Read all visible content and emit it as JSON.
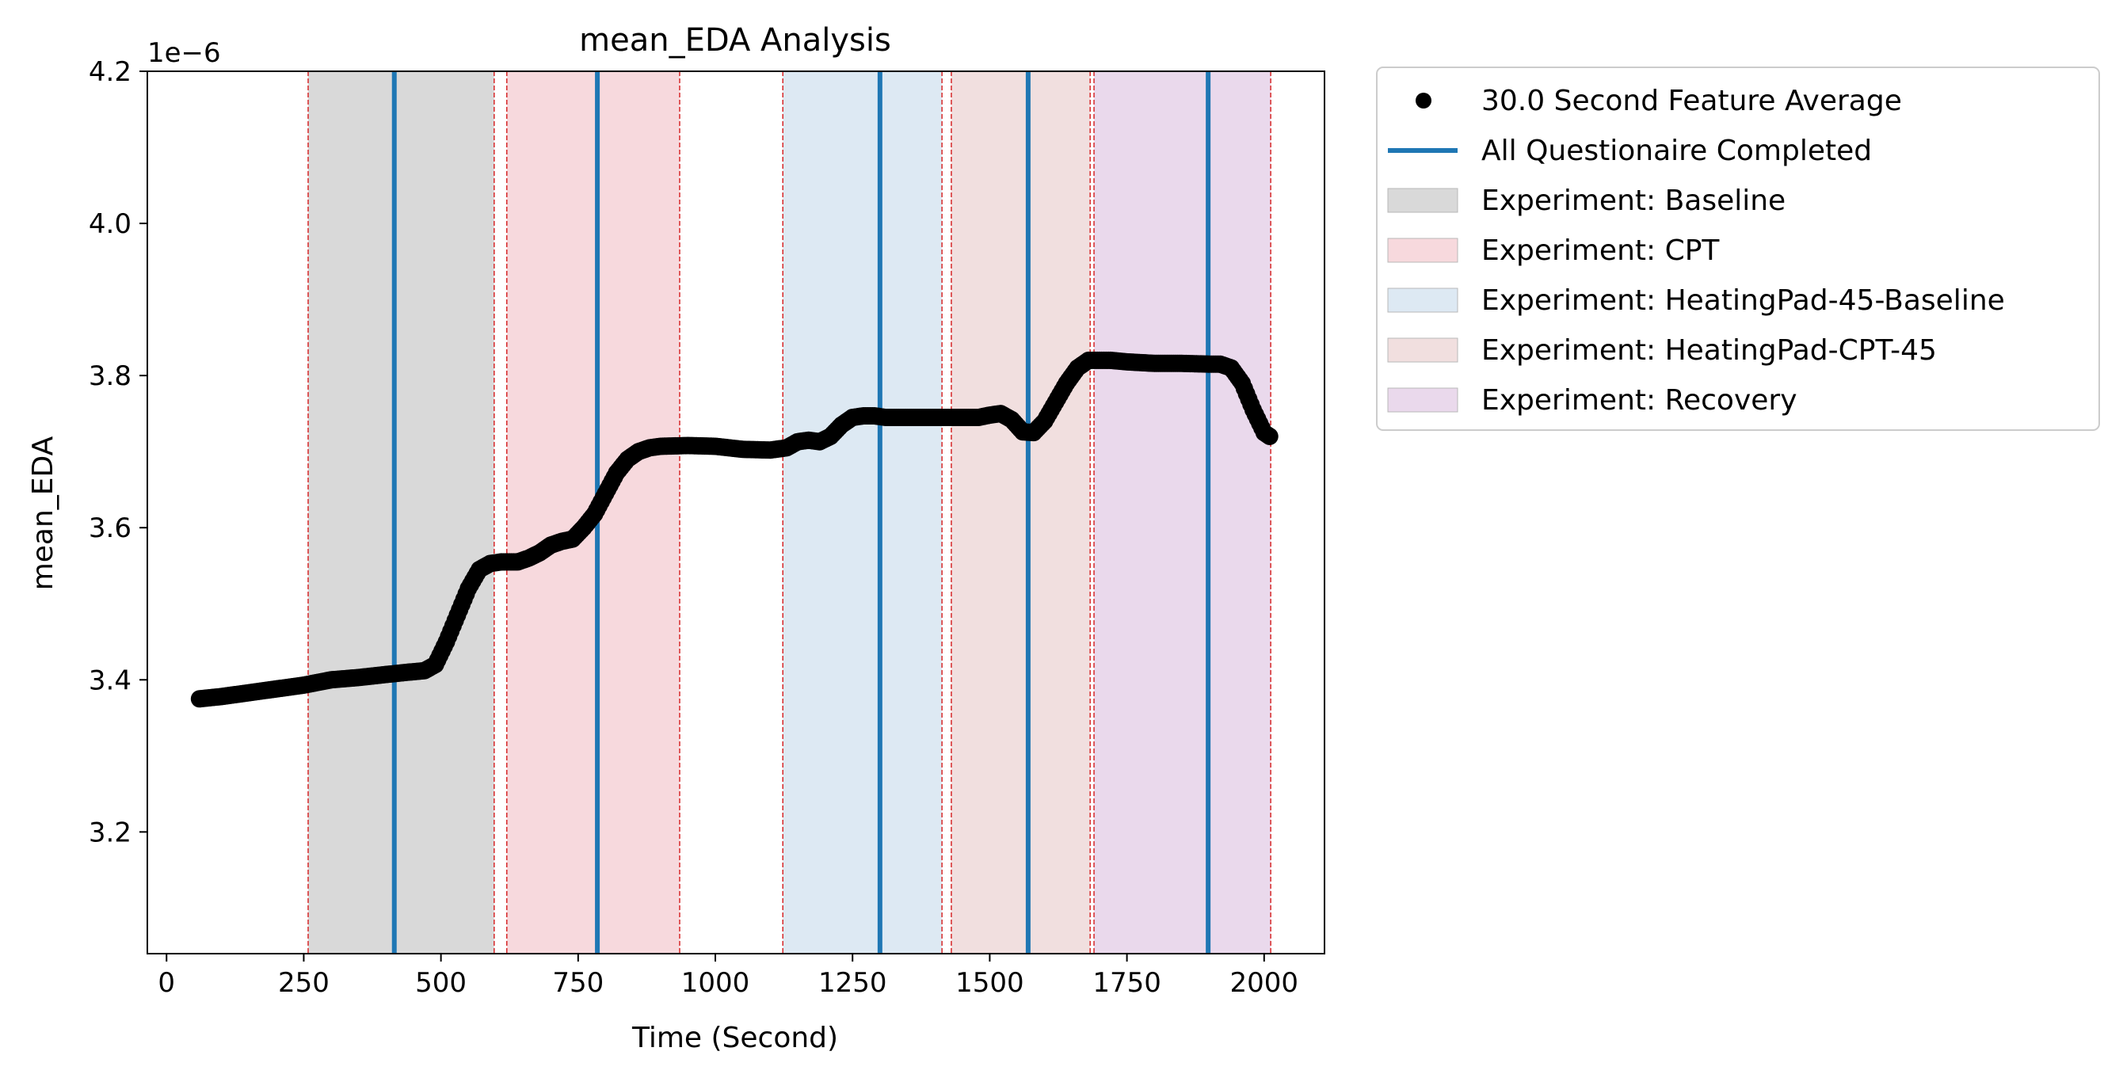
{
  "chart_data": {
    "type": "line",
    "title": "mean_EDA Analysis",
    "xlabel": "Time (Second)",
    "ylabel": "mean_EDA",
    "y_offset_label": "1e−6",
    "xlim": [
      -35,
      2110
    ],
    "ylim": [
      3.04,
      4.2
    ],
    "x_ticks": [
      0,
      250,
      500,
      750,
      1000,
      1250,
      1500,
      1750,
      2000
    ],
    "y_ticks": [
      3.2,
      3.4,
      3.6,
      3.8,
      4.0,
      4.2
    ],
    "y_tick_labels": [
      "3.2",
      "3.4",
      "3.6",
      "3.8",
      "4.0",
      "4.2"
    ],
    "grid": false,
    "legend_position": "outside-right-top",
    "colors": {
      "series": "#000000",
      "questionnaire": "#1f77b4",
      "boundary": "#d62728"
    },
    "series": [
      {
        "name": "30.0 Second Feature Average",
        "x": [
          60,
          100,
          150,
          200,
          250,
          300,
          350,
          400,
          440,
          470,
          490,
          510,
          530,
          550,
          570,
          590,
          610,
          640,
          660,
          680,
          700,
          720,
          740,
          760,
          780,
          800,
          820,
          840,
          860,
          880,
          900,
          950,
          1000,
          1050,
          1100,
          1130,
          1150,
          1170,
          1190,
          1210,
          1230,
          1250,
          1270,
          1290,
          1310,
          1350,
          1400,
          1450,
          1480,
          1500,
          1520,
          1540,
          1560,
          1580,
          1600,
          1620,
          1640,
          1660,
          1680,
          1700,
          1720,
          1750,
          1800,
          1850,
          1900,
          1920,
          1940,
          1960,
          1980,
          2000,
          2010
        ],
        "y": [
          3.375,
          3.378,
          3.383,
          3.388,
          3.393,
          3.4,
          3.403,
          3.407,
          3.41,
          3.412,
          3.42,
          3.45,
          3.485,
          3.52,
          3.545,
          3.553,
          3.555,
          3.555,
          3.56,
          3.567,
          3.577,
          3.582,
          3.585,
          3.6,
          3.618,
          3.645,
          3.672,
          3.69,
          3.7,
          3.705,
          3.707,
          3.708,
          3.707,
          3.703,
          3.702,
          3.705,
          3.713,
          3.715,
          3.713,
          3.72,
          3.735,
          3.745,
          3.747,
          3.747,
          3.745,
          3.745,
          3.745,
          3.745,
          3.745,
          3.748,
          3.75,
          3.742,
          3.726,
          3.725,
          3.74,
          3.765,
          3.79,
          3.81,
          3.82,
          3.82,
          3.82,
          3.818,
          3.816,
          3.816,
          3.815,
          3.815,
          3.81,
          3.79,
          3.755,
          3.725,
          3.72
        ]
      }
    ],
    "questionnaire_lines": {
      "name": "All Questionaire Completed",
      "x": [
        415,
        785,
        1300,
        1570,
        1898
      ]
    },
    "experiments": [
      {
        "name": "Experiment: Baseline",
        "start": 258,
        "end": 597,
        "color": "#d9d9d9"
      },
      {
        "name": "Experiment: CPT",
        "start": 620,
        "end": 935,
        "color": "#f7d9dd"
      },
      {
        "name": "Experiment: HeatingPad-45-Baseline",
        "start": 1123,
        "end": 1413,
        "color": "#dde9f3"
      },
      {
        "name": "Experiment: HeatingPad-CPT-45",
        "start": 1430,
        "end": 1683,
        "color": "#f1dfdf"
      },
      {
        "name": "Experiment: Recovery",
        "start": 1690,
        "end": 2012,
        "color": "#ead9ec"
      }
    ]
  }
}
